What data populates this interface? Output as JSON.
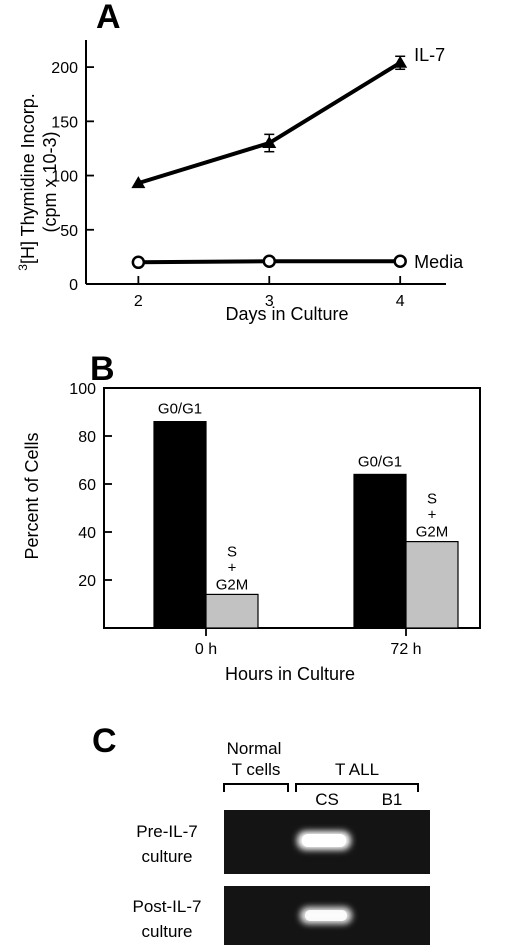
{
  "chart_data": [
    {
      "panel": "A",
      "type": "line",
      "xlabel": "Days in Culture",
      "ylabel_sup": "3",
      "ylabel_line1": "[H] Thymidine Incorp.",
      "ylabel_line2": "(cpm x 10-3)",
      "x": [
        2,
        3,
        4
      ],
      "xlim": [
        1.6,
        4.35
      ],
      "ylim": [
        0,
        225
      ],
      "xticks": [
        "2",
        "3",
        "4"
      ],
      "yticks": [
        "0",
        "50",
        "100",
        "150",
        "200"
      ],
      "series": [
        {
          "name": "IL-7",
          "marker": "filled-triangle",
          "values": [
            93,
            130,
            204
          ],
          "errors": [
            0,
            8,
            6
          ]
        },
        {
          "name": "Media",
          "marker": "open-circle",
          "values": [
            20,
            21,
            21
          ],
          "errors": [
            1,
            1,
            1
          ]
        }
      ],
      "grid": false
    },
    {
      "panel": "B",
      "type": "bar",
      "xlabel": "Hours in Culture",
      "ylabel": "Percent of Cells",
      "ylim": [
        0,
        100
      ],
      "yticks": [
        "20",
        "40",
        "60",
        "80",
        "100"
      ],
      "categories": [
        "0 h",
        "72 h"
      ],
      "series": [
        {
          "name": "G0/G1",
          "color": "#000000",
          "values": [
            86,
            64
          ]
        },
        {
          "name": "S+G2M",
          "label_top": "S",
          "label_mid": "+",
          "label_bottom": "G2M",
          "color": "#c2c2c2",
          "values": [
            14,
            36
          ]
        }
      ],
      "grid": false
    }
  ],
  "panel_c": {
    "letter": "C",
    "group1_line1": "Normal",
    "group1_line2": "T cells",
    "group2": "T ALL",
    "lane_cs": "CS",
    "lane_b1": "B1",
    "row1_line1": "Pre-IL-7",
    "row1_line2": "culture",
    "row2_line1": "Post-IL-7",
    "row2_line2": "culture"
  },
  "colors": {
    "gel_background": "#141414",
    "band": "#ffffff"
  }
}
